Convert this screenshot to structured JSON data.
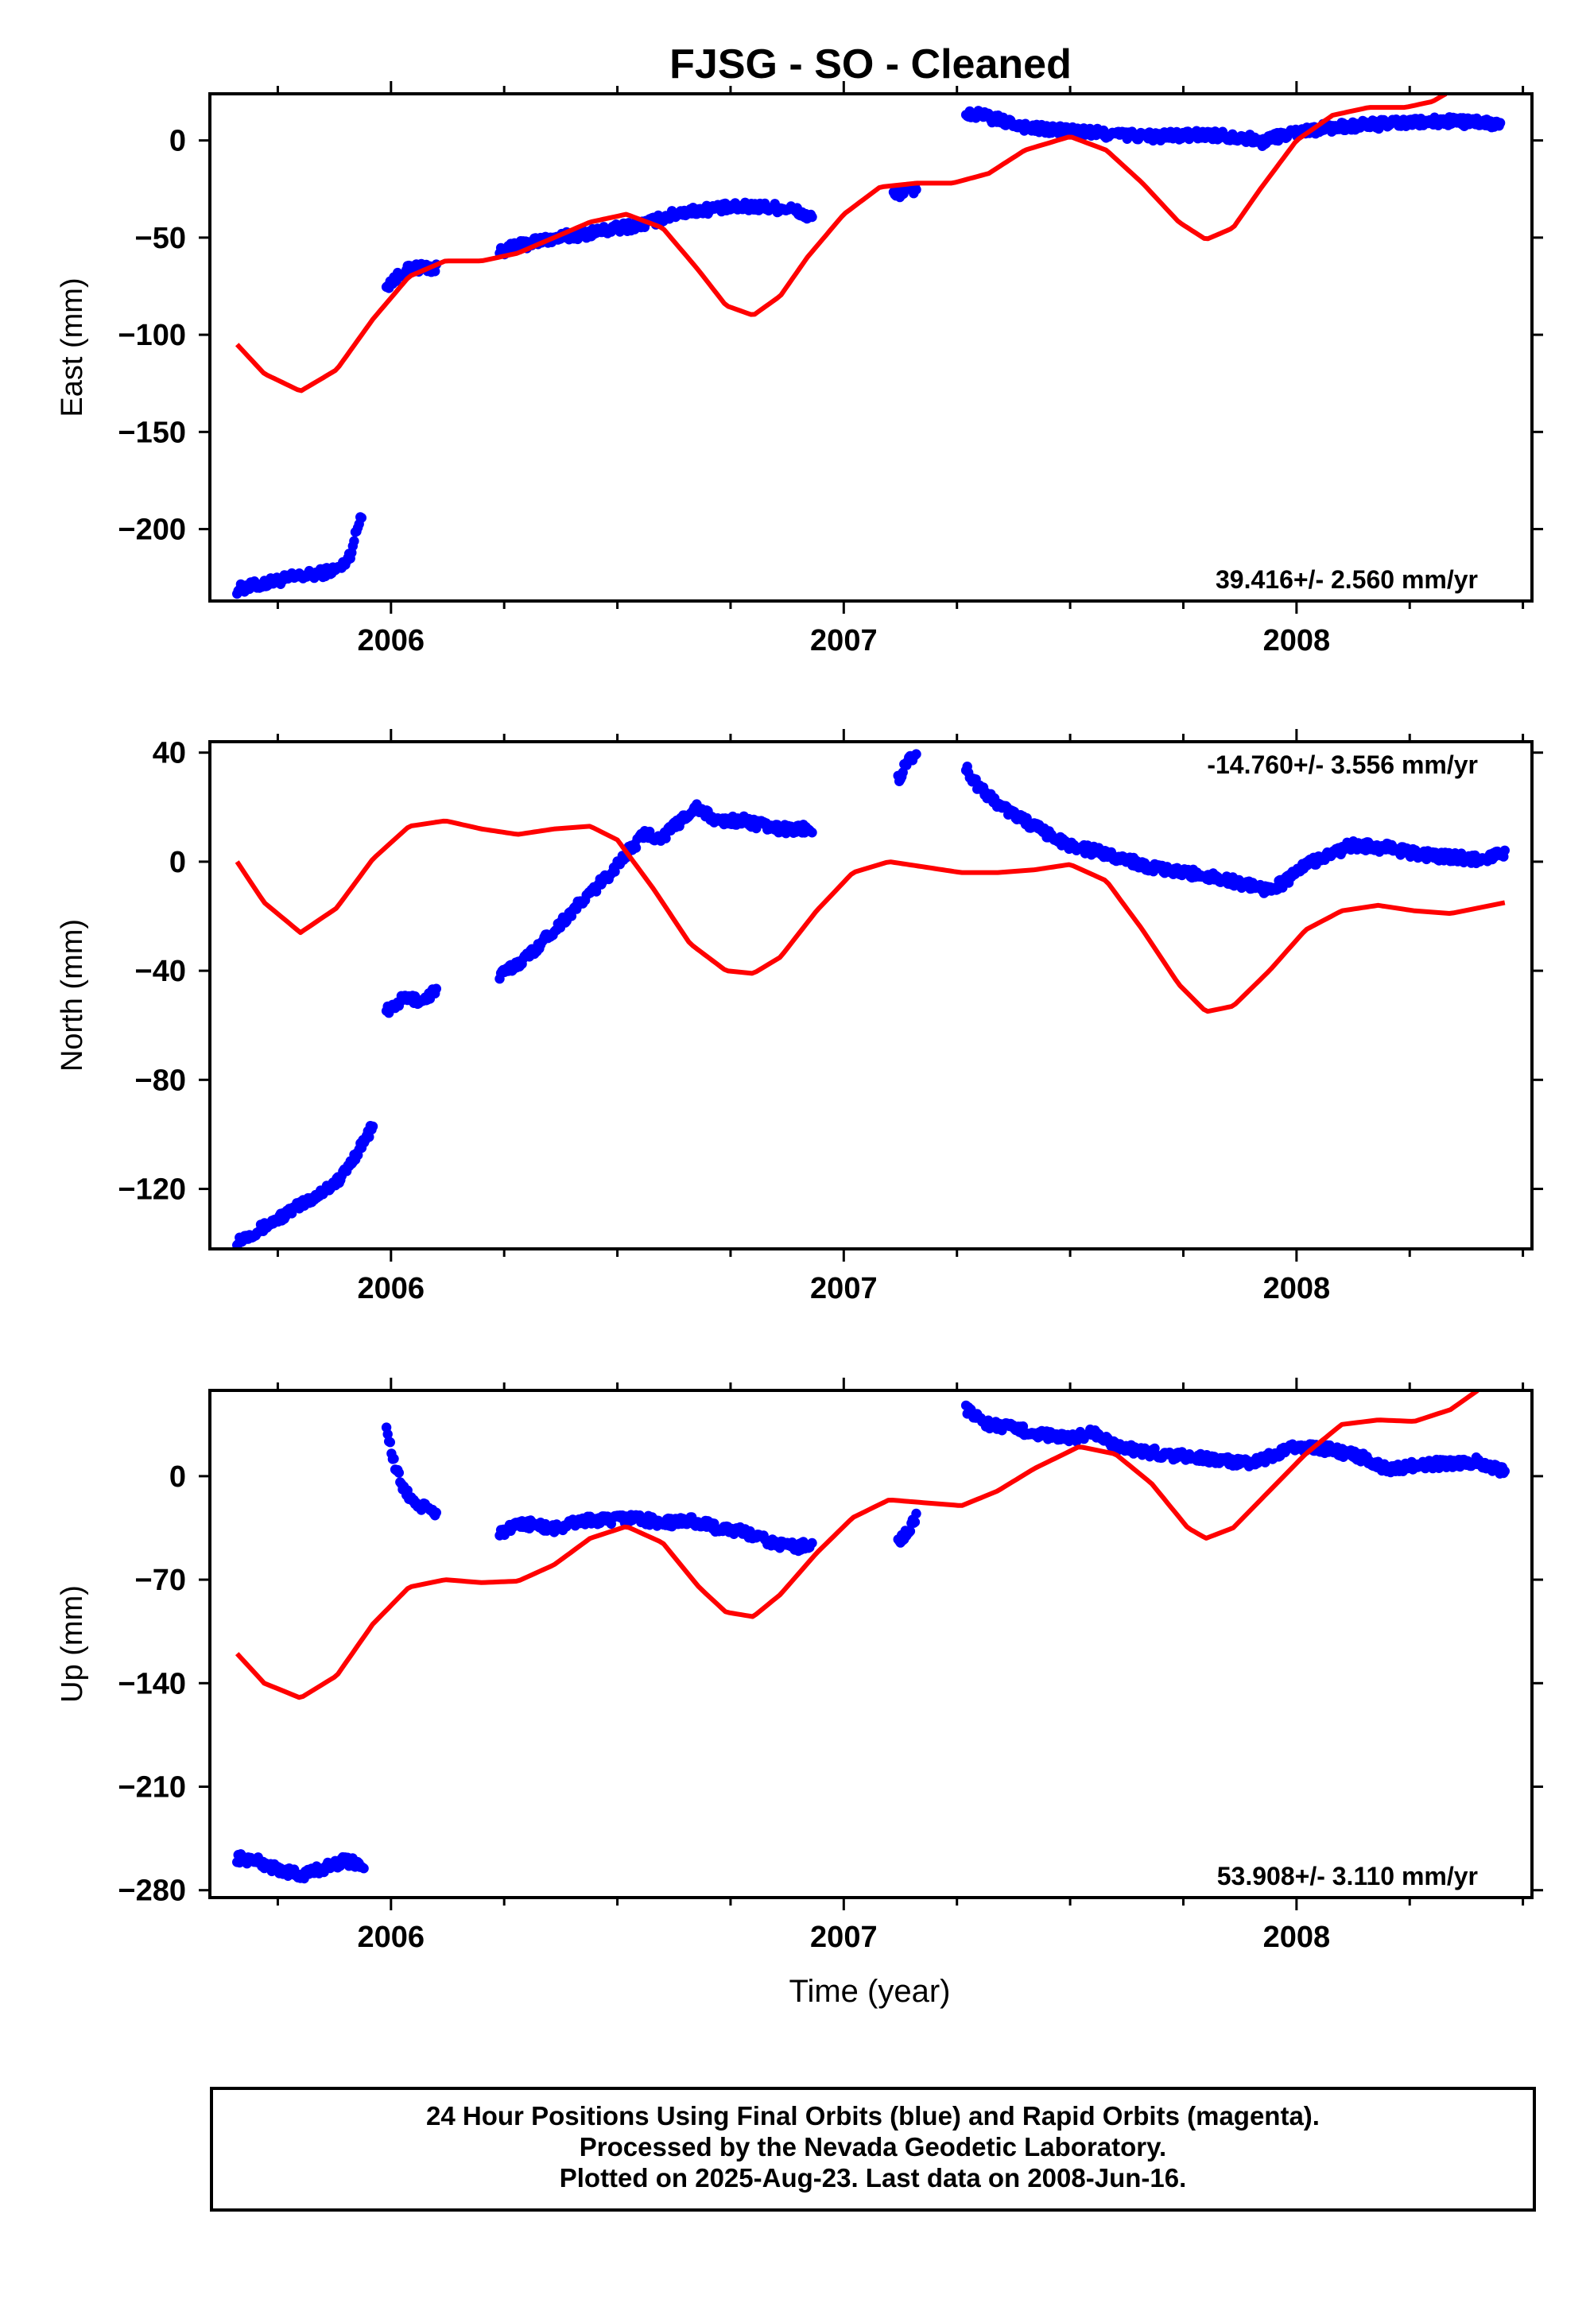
{
  "title": "FJSG  - SO - Cleaned",
  "xlabel": "Time (year)",
  "footer": [
    "24 Hour Positions Using Final Orbits (blue) and Rapid Orbits (magenta).",
    "Processed by the Nevada Geodetic Laboratory.",
    "Plotted on 2025-Aug-23. Last data on 2008-Jun-16."
  ],
  "colors": {
    "data": "#0000ff",
    "model": "#ff0000",
    "frame": "#000000"
  },
  "chart_data": [
    {
      "type": "scatter",
      "ylabel": "East (mm)",
      "rate_text": "39.416+/- 2.560 mm/yr",
      "rate_position": "bottom-right",
      "xlim": [
        2005.6,
        2008.52
      ],
      "ylim": [
        -237,
        24
      ],
      "xticks": [
        2006,
        2007,
        2008
      ],
      "yticks": [
        0,
        -50,
        -100,
        -150,
        -200
      ],
      "ytick_labels": [
        "0",
        "−50",
        "−100",
        "−150",
        "−200"
      ],
      "series": [
        {
          "role": "data",
          "segments": [
            {
              "x": [
                2005.66,
                2005.72,
                2005.78,
                2005.84,
                2005.89,
                2005.91,
                2005.935
              ],
              "y": [
                -231,
                -228,
                -225,
                -223,
                -220,
                -213,
                -192
              ]
            },
            {
              "x": [
                2005.99,
                2006.03,
                2006.07,
                2006.1
              ],
              "y": [
                -75,
                -67,
                -65,
                -66
              ]
            },
            {
              "x": [
                2006.24,
                2006.32,
                2006.4,
                2006.48,
                2006.56,
                2006.64,
                2006.72,
                2006.8,
                2006.88,
                2006.93
              ],
              "y": [
                -57,
                -52,
                -49,
                -46,
                -43,
                -37,
                -35,
                -34,
                -35,
                -40
              ]
            },
            {
              "x": [
                2007.11,
                2007.14,
                2007.16
              ],
              "y": [
                -28,
                -26,
                -25
              ]
            },
            {
              "x": [
                2007.27,
                2007.3,
                2007.35,
                2007.42,
                2007.5,
                2007.6,
                2007.7,
                2007.8,
                2007.88,
                2007.92,
                2007.97,
                2008.05,
                2008.15,
                2008.25,
                2008.35,
                2008.45
              ],
              "y": [
                14,
                13,
                10,
                6,
                5,
                3,
                2,
                3,
                2,
                -1,
                3,
                6,
                8,
                9,
                10,
                8
              ]
            }
          ]
        },
        {
          "role": "model",
          "x": [
            2005.66,
            2005.72,
            2005.8,
            2005.88,
            2005.96,
            2006.04,
            2006.12,
            2006.2,
            2006.28,
            2006.36,
            2006.44,
            2006.52,
            2006.6,
            2006.68,
            2006.74,
            2006.8,
            2006.86,
            2006.92,
            2007.0,
            2007.08,
            2007.16,
            2007.24,
            2007.32,
            2007.4,
            2007.5,
            2007.58,
            2007.66,
            2007.74,
            2007.8,
            2007.86,
            2007.92,
            2008.0,
            2008.08,
            2008.16,
            2008.24,
            2008.3,
            2008.33
          ],
          "y": [
            -105,
            -120,
            -129,
            -118,
            -92,
            -70,
            -62,
            -62,
            -58,
            -50,
            -42,
            -38,
            -45,
            -67,
            -85,
            -90,
            -80,
            -60,
            -38,
            -24,
            -22,
            -22,
            -17,
            -5,
            2,
            -5,
            -22,
            -42,
            -51,
            -45,
            -25,
            0,
            13,
            17,
            17,
            20,
            24
          ]
        }
      ]
    },
    {
      "type": "scatter",
      "ylabel": "North (mm)",
      "rate_text": "-14.760+/- 3.556 mm/yr",
      "rate_position": "top-right",
      "xlim": [
        2005.6,
        2008.52
      ],
      "ylim": [
        -142,
        44
      ],
      "xticks": [
        2006,
        2007,
        2008
      ],
      "yticks": [
        40,
        0,
        -40,
        -80,
        -120
      ],
      "ytick_labels": [
        "40",
        "0",
        "−40",
        "−80",
        "−120"
      ],
      "series": [
        {
          "role": "data",
          "segments": [
            {
              "x": [
                2005.66,
                2005.72,
                2005.78,
                2005.84,
                2005.89,
                2005.92,
                2005.96
              ],
              "y": [
                -139,
                -134,
                -128,
                -122,
                -116,
                -108,
                -97
              ]
            },
            {
              "x": [
                2005.99,
                2006.03,
                2006.07,
                2006.1
              ],
              "y": [
                -55,
                -50,
                -51,
                -47
              ]
            },
            {
              "x": [
                2006.24,
                2006.3,
                2006.36,
                2006.42,
                2006.48,
                2006.52,
                2006.56,
                2006.6,
                2006.64,
                2006.67,
                2006.72,
                2006.78,
                2006.85,
                2006.93
              ],
              "y": [
                -42,
                -35,
                -25,
                -15,
                -5,
                3,
                10,
                9,
                15,
                20,
                15,
                15,
                12,
                12
              ]
            },
            {
              "x": [
                2007.12,
                2007.14,
                2007.16
              ],
              "y": [
                30,
                37,
                40
              ]
            },
            {
              "x": [
                2007.27,
                2007.3,
                2007.35,
                2007.4,
                2007.45,
                2007.5,
                2007.6,
                2007.7,
                2007.8,
                2007.88,
                2007.93,
                2007.97,
                2008.02,
                2008.08,
                2008.12,
                2008.2,
                2008.3,
                2008.4,
                2008.46
              ],
              "y": [
                34,
                27,
                20,
                15,
                10,
                6,
                2,
                -3,
                -5,
                -8,
                -10,
                -8,
                -1,
                3,
                6,
                5,
                2,
                1,
                3
              ]
            }
          ]
        },
        {
          "role": "model",
          "x": [
            2005.66,
            2005.72,
            2005.8,
            2005.88,
            2005.96,
            2006.04,
            2006.12,
            2006.2,
            2006.28,
            2006.36,
            2006.44,
            2006.5,
            2006.58,
            2006.66,
            2006.74,
            2006.8,
            2006.86,
            2006.94,
            2007.02,
            2007.1,
            2007.18,
            2007.26,
            2007.34,
            2007.42,
            2007.5,
            2007.58,
            2007.66,
            2007.74,
            2007.8,
            2007.86,
            2007.94,
            2008.02,
            2008.1,
            2008.18,
            2008.26,
            2008.34,
            2008.46
          ],
          "y": [
            0,
            -15,
            -26,
            -17,
            1,
            13,
            15,
            12,
            10,
            12,
            13,
            8,
            -10,
            -30,
            -40,
            -41,
            -35,
            -18,
            -4,
            0,
            -2,
            -4,
            -4,
            -3,
            -1,
            -7,
            -25,
            -45,
            -55,
            -53,
            -40,
            -25,
            -18,
            -16,
            -18,
            -19,
            -15
          ]
        }
      ]
    },
    {
      "type": "scatter",
      "ylabel": "Up (mm)",
      "rate_text": "53.908+/- 3.110 mm/yr",
      "rate_position": "bottom-right",
      "xlim": [
        2005.6,
        2008.52
      ],
      "ylim": [
        -285,
        58
      ],
      "xticks": [
        2006,
        2007,
        2008
      ],
      "yticks": [
        0,
        -70,
        -140,
        -210,
        -280
      ],
      "ytick_labels": [
        "0",
        "−70",
        "−140",
        "−210",
        "−280"
      ],
      "series": [
        {
          "role": "data",
          "segments": [
            {
              "x": [
                2005.66,
                2005.7,
                2005.75,
                2005.8,
                2005.86,
                2005.9,
                2005.94
              ],
              "y": [
                -258,
                -260,
                -266,
                -270,
                -264,
                -260,
                -263
              ]
            },
            {
              "x": [
                2005.99,
                2006.01,
                2006.03,
                2006.06,
                2006.08,
                2006.1
              ],
              "y": [
                32,
                5,
                -10,
                -20,
                -22,
                -25
              ]
            },
            {
              "x": [
                2006.24,
                2006.3,
                2006.36,
                2006.42,
                2006.48,
                2006.54,
                2006.6,
                2006.66,
                2006.72,
                2006.78,
                2006.84,
                2006.9,
                2006.93
              ],
              "y": [
                -38,
                -32,
                -36,
                -30,
                -30,
                -28,
                -32,
                -30,
                -35,
                -38,
                -45,
                -48,
                -45
              ]
            },
            {
              "x": [
                2007.12,
                2007.14,
                2007.16
              ],
              "y": [
                -45,
                -38,
                -28
              ]
            },
            {
              "x": [
                2007.27,
                2007.32,
                2007.38,
                2007.44,
                2007.5,
                2007.55,
                2007.6,
                2007.7,
                2007.8,
                2007.9,
                2008.0,
                2008.08,
                2008.15,
                2008.2,
                2008.3,
                2008.4,
                2008.46
              ],
              "y": [
                45,
                35,
                32,
                28,
                25,
                30,
                20,
                15,
                12,
                8,
                20,
                18,
                12,
                5,
                8,
                10,
                3
              ]
            }
          ]
        },
        {
          "role": "model",
          "x": [
            2005.66,
            2005.72,
            2005.8,
            2005.88,
            2005.96,
            2006.04,
            2006.12,
            2006.2,
            2006.28,
            2006.36,
            2006.44,
            2006.52,
            2006.6,
            2006.68,
            2006.74,
            2006.8,
            2006.86,
            2006.94,
            2007.02,
            2007.1,
            2007.18,
            2007.26,
            2007.34,
            2007.42,
            2007.52,
            2007.6,
            2007.68,
            2007.76,
            2007.8,
            2007.86,
            2007.94,
            2008.02,
            2008.1,
            2008.18,
            2008.26,
            2008.34,
            2008.4
          ],
          "y": [
            -120,
            -140,
            -150,
            -135,
            -100,
            -75,
            -70,
            -72,
            -71,
            -60,
            -42,
            -34,
            -45,
            -75,
            -92,
            -95,
            -80,
            -52,
            -28,
            -16,
            -18,
            -20,
            -10,
            5,
            20,
            15,
            -5,
            -35,
            -42,
            -35,
            -10,
            15,
            35,
            38,
            37,
            45,
            58
          ]
        }
      ]
    }
  ]
}
